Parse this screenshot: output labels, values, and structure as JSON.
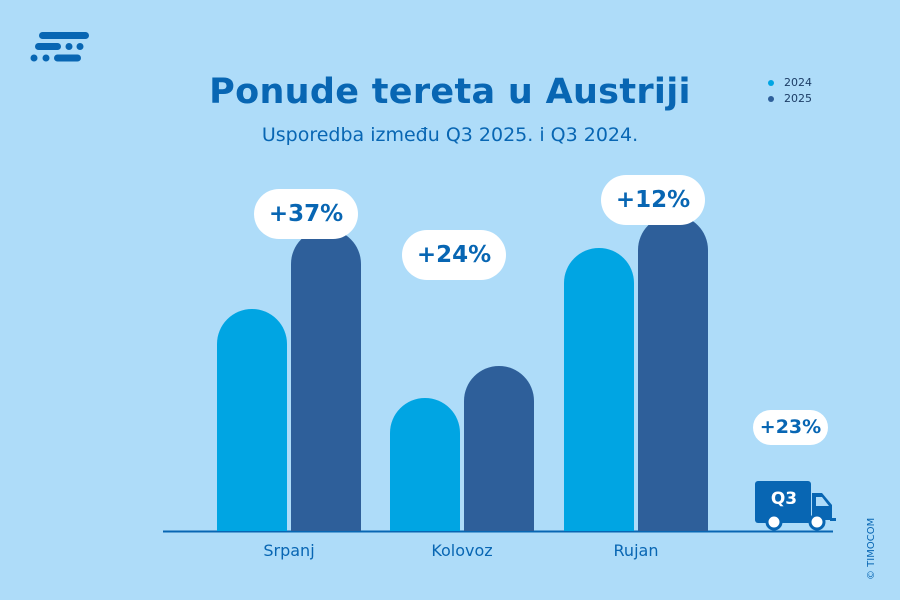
{
  "title": "Ponude tereta u Austriji",
  "subtitle": "Usporedba između Q3 2025. i Q3 2024.",
  "copyright": "© TIMOCOM",
  "colors": {
    "background": "#aedcf9",
    "series_2024": "#00a5e3",
    "series_2025": "#2e5f9a",
    "text": "#0866b3"
  },
  "icons": {
    "logo": "timocom-logo-icon",
    "truck": "truck-icon"
  },
  "total": {
    "label": "+23%",
    "badge": "Q3"
  },
  "chart_data": {
    "type": "bar",
    "title": "Ponude tereta u Austriji",
    "subtitle": "Usporedba između Q3 2025. i Q3 2024.",
    "categories": [
      "Srpanj",
      "Kolovoz",
      "Rujan"
    ],
    "series": [
      {
        "name": "2024",
        "values": [
          222,
          133,
          283
        ]
      },
      {
        "name": "2025",
        "values": [
          302,
          165,
          316
        ]
      }
    ],
    "annotations": [
      "+37%",
      "+24%",
      "+12%"
    ],
    "legend": "top-right",
    "grid": false,
    "y_axis_visible": false
  }
}
